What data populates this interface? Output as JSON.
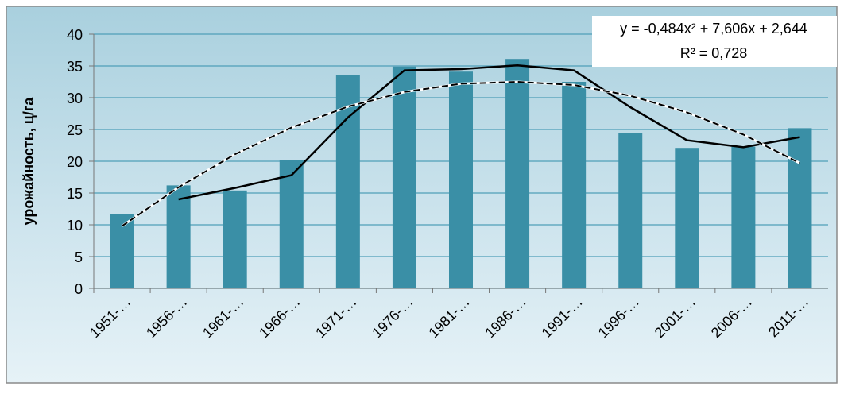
{
  "chart_data": {
    "type": "bar",
    "y_label": "урожайность, ц/га",
    "annotations": [
      "y = -0,484x² + 7,606x + 2,644",
      "R² = 0,728"
    ],
    "categories": [
      "1951-…",
      "1956-…",
      "1961-…",
      "1966-…",
      "1971-…",
      "1976-…",
      "1981-…",
      "1986-…",
      "1991-…",
      "1996-…",
      "2001-…",
      "2006-…",
      "2011-…"
    ],
    "values": [
      11.7,
      16.2,
      15.4,
      20.2,
      33.6,
      34.9,
      34.1,
      36.1,
      32.5,
      24.4,
      22.1,
      22.3,
      25.2
    ],
    "color": "#3a8fa6",
    "lines": [
      {
        "color": "#000000",
        "style": "solid",
        "values": [
          null,
          14.0,
          15.8,
          17.8,
          26.9,
          34.3,
          34.5,
          35.1,
          34.3,
          28.5,
          23.3,
          22.2,
          23.8
        ]
      },
      {
        "color": "#000000",
        "style": "dashed",
        "values": [
          9.8,
          15.9,
          21.1,
          25.3,
          28.6,
          30.9,
          32.2,
          32.5,
          32.0,
          30.3,
          27.7,
          24.2,
          19.7
        ]
      }
    ],
    "ylim": [
      0,
      40
    ],
    "yticks": [
      0,
      5,
      10,
      15,
      20,
      25,
      30,
      35,
      40
    ],
    "grid": true
  }
}
